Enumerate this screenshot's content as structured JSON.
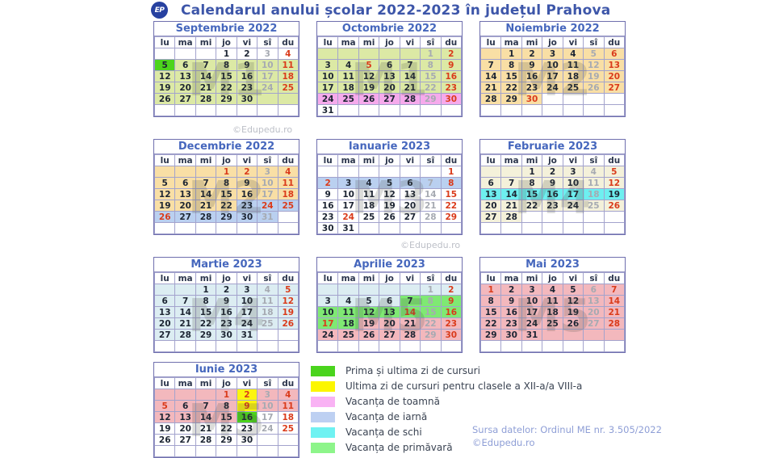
{
  "title": "Calendarul anului școlar 2022-2023 în județul Prahova",
  "logo_text": "EP",
  "copyright_watermark": "©Edupedu.ro",
  "day_headers": [
    "lu",
    "ma",
    "mi",
    "jo",
    "vi",
    "sî",
    "du"
  ],
  "palette": {
    "g1": "#dce9a5",
    "gs": "#4cd41c",
    "au": "#f6aaec",
    "pe": "#f9dfa5",
    "wi": "#bad0f0",
    "cr": "#f4f1da",
    "sk": "#6eeff0",
    "pb": "#dcedf2",
    "sp": "#7fe973",
    "pk": "#f3b8bd",
    "ye": "#fdf410"
  },
  "text_colors": {
    "d": "#1d2533",
    "x": "#a6aab2",
    "r": "#da3b1b"
  },
  "months": [
    {
      "name": "Septembrie 2022",
      "watermark": "M1",
      "weeks": [
        [
          "::",
          "::",
          "::",
          "1:d:",
          "2:d:",
          "3:x:",
          "4:r:"
        ],
        [
          "5:d:gs",
          "6:d:g1",
          "7:d:g1",
          "8:d:g1",
          "9:d:g1",
          "10:x:g1",
          "11:r:g1"
        ],
        [
          "12:d:g1",
          "13:d:g1",
          "14:d:g1",
          "15:d:g1",
          "16:d:g1",
          "17:x:g1",
          "18:r:g1"
        ],
        [
          "19:d:g1",
          "20:d:g1",
          "21:d:g1",
          "22:d:g1",
          "23:d:g1",
          "24:x:g1",
          "25:r:g1"
        ],
        [
          "26:d:g1",
          "27:d:g1",
          "28:d:g1",
          "29:d:g1",
          "30:d:g1",
          "::g1",
          "::g1"
        ],
        [
          "::",
          "::",
          "::",
          "::",
          "::",
          "::",
          "::"
        ]
      ]
    },
    {
      "name": "Octombrie 2022",
      "watermark": "M1",
      "weeks": [
        [
          "::g1",
          "::g1",
          "::g1",
          "::g1",
          "::g1",
          "1:x:g1",
          "2:r:g1"
        ],
        [
          "3:d:g1",
          "4:d:g1",
          "5:r:g1",
          "6:d:g1",
          "7:d:g1",
          "8:x:g1",
          "9:r:g1"
        ],
        [
          "10:d:g1",
          "11:d:g1",
          "12:d:g1",
          "13:d:g1",
          "14:d:g1",
          "15:x:g1",
          "16:r:g1"
        ],
        [
          "17:d:g1",
          "18:d:g1",
          "19:d:g1",
          "20:d:g1",
          "21:d:g1",
          "22:x:g1",
          "23:r:g1"
        ],
        [
          "24:d:au",
          "25:d:au",
          "26:d:au",
          "27:d:au",
          "28:d:au",
          "29:x:au",
          "30:r:au"
        ],
        [
          "31:d:",
          "::",
          "::",
          "::",
          "::",
          "::",
          "::"
        ]
      ]
    },
    {
      "name": "Noiembrie 2022",
      "watermark": "M2",
      "weeks": [
        [
          "::pe",
          "1:d:pe",
          "2:d:pe",
          "3:d:pe",
          "4:d:pe",
          "5:x:pe",
          "6:r:pe"
        ],
        [
          "7:d:pe",
          "8:d:pe",
          "9:d:pe",
          "10:d:pe",
          "11:d:pe",
          "12:x:pe",
          "13:r:pe"
        ],
        [
          "14:d:pe",
          "15:d:pe",
          "16:d:pe",
          "17:d:pe",
          "18:d:pe",
          "19:x:pe",
          "20:r:pe"
        ],
        [
          "21:d:pe",
          "22:d:pe",
          "23:d:pe",
          "24:d:pe",
          "25:d:pe",
          "26:x:pe",
          "27:r:pe"
        ],
        [
          "28:d:pe",
          "29:d:pe",
          "30:r:pe",
          "::",
          "::",
          "::",
          "::"
        ],
        [
          "::",
          "::",
          "::",
          "::",
          "::",
          "::",
          "::"
        ]
      ]
    },
    {
      "name": "Decembrie 2022",
      "watermark": "M2",
      "weeks": [
        [
          "::pe",
          "::pe",
          "::pe",
          "1:r:pe",
          "2:r:pe",
          "3:x:pe",
          "4:r:pe"
        ],
        [
          "5:d:pe",
          "6:d:pe",
          "7:d:pe",
          "8:d:pe",
          "9:d:pe",
          "10:x:pe",
          "11:r:pe"
        ],
        [
          "12:d:pe",
          "13:d:pe",
          "14:d:pe",
          "15:d:pe",
          "16:d:pe",
          "17:x:pe",
          "18:r:pe"
        ],
        [
          "19:d:pe",
          "20:d:pe",
          "21:d:pe",
          "22:d:pe",
          "23:d:wi",
          "24:r:wi",
          "25:r:wi"
        ],
        [
          "26:r:wi",
          "27:d:wi",
          "28:d:wi",
          "29:d:wi",
          "30:d:wi",
          "31:x:wi",
          "::"
        ],
        [
          "::",
          "::",
          "::",
          "::",
          "::",
          "::",
          "::"
        ]
      ]
    },
    {
      "name": "Ianuarie 2023",
      "watermark": "M3",
      "weeks": [
        [
          "::",
          "::",
          "::",
          "::",
          "::",
          "::",
          "1:r:"
        ],
        [
          "2:r:wi",
          "3:d:wi",
          "4:d:wi",
          "5:d:wi",
          "6:d:wi",
          "7:x:wi",
          "8:r:wi"
        ],
        [
          "9:d:",
          "10:d:",
          "11:d:",
          "12:d:",
          "13:d:",
          "14:x:",
          "15:r:"
        ],
        [
          "16:d:",
          "17:d:",
          "18:d:",
          "19:d:",
          "20:d:",
          "21:x:",
          "22:r:"
        ],
        [
          "23:d:",
          "24:r:",
          "25:d:",
          "26:d:",
          "27:d:",
          "28:x:",
          "29:r:"
        ],
        [
          "30:d:",
          "31:d:",
          "::",
          "::",
          "::",
          "::",
          "::"
        ]
      ]
    },
    {
      "name": "Februarie 2023",
      "watermark": "M4",
      "weeks": [
        [
          "::cr",
          "::cr",
          "1:d:cr",
          "2:d:cr",
          "3:d:cr",
          "4:x:cr",
          "5:r:cr"
        ],
        [
          "6:d:cr",
          "7:d:cr",
          "8:d:cr",
          "9:d:cr",
          "10:d:cr",
          "11:x:cr",
          "12:r:cr"
        ],
        [
          "13:d:sk",
          "14:d:sk",
          "15:d:sk",
          "16:d:sk",
          "17:d:sk",
          "18:x:sk",
          "19:d:sk"
        ],
        [
          "20:d:cr",
          "21:d:cr",
          "22:d:cr",
          "23:d:cr",
          "24:d:cr",
          "25:x:cr",
          "26:r:cr"
        ],
        [
          "27:d:cr",
          "28:d:cr",
          "::",
          "::",
          "::",
          "::",
          "::"
        ],
        [
          "::",
          "::",
          "::",
          "::",
          "::",
          "::",
          "::"
        ]
      ]
    },
    {
      "name": "Martie 2023",
      "watermark": "M4",
      "weeks": [
        [
          "::pb",
          "::pb",
          "1:d:pb",
          "2:d:pb",
          "3:d:pb",
          "4:x:pb",
          "5:r:pb"
        ],
        [
          "6:d:pb",
          "7:d:pb",
          "8:d:pb",
          "9:d:pb",
          "10:d:pb",
          "11:x:pb",
          "12:r:pb"
        ],
        [
          "13:d:pb",
          "14:d:pb",
          "15:d:pb",
          "16:d:pb",
          "17:d:pb",
          "18:x:pb",
          "19:r:pb"
        ],
        [
          "20:d:pb",
          "21:d:pb",
          "22:d:pb",
          "23:d:pb",
          "24:d:pb",
          "25:x:pb",
          "26:r:pb"
        ],
        [
          "27:d:pb",
          "28:d:pb",
          "29:d:pb",
          "30:d:pb",
          "31:d:pb",
          "::",
          "::"
        ],
        [
          "::",
          "::",
          "::",
          "::",
          "::",
          "::",
          "::"
        ]
      ]
    },
    {
      "name": "Aprilie 2023",
      "watermark": "M5",
      "weeks": [
        [
          "::pb",
          "::pb",
          "::pb",
          "::pb",
          "::pb",
          "1:x:pb",
          "2:r:pb"
        ],
        [
          "3:d:pb",
          "4:d:pb",
          "5:d:pb",
          "6:d:pb",
          "7:d:sp",
          "8:x:sp",
          "9:r:sp"
        ],
        [
          "10:d:sp",
          "11:d:sp",
          "12:d:sp",
          "13:d:sp",
          "14:r:sp",
          "15:x:sp",
          "16:r:sp"
        ],
        [
          "17:r:sp",
          "18:d:sp",
          "19:d:pk",
          "20:d:pk",
          "21:d:pk",
          "22:x:pk",
          "23:r:pk"
        ],
        [
          "24:d:pk",
          "25:d:pk",
          "26:d:pk",
          "27:d:pk",
          "28:d:pk",
          "29:x:pk",
          "30:r:pk"
        ],
        [
          "::",
          "::",
          "::",
          "::",
          "::",
          "::",
          "::"
        ]
      ]
    },
    {
      "name": "Mai 2023",
      "watermark": "M5",
      "weeks": [
        [
          "1:r:pk",
          "2:d:pk",
          "3:d:pk",
          "4:d:pk",
          "5:d:pk",
          "6:x:pk",
          "7:r:pk"
        ],
        [
          "8:d:pk",
          "9:d:pk",
          "10:d:pk",
          "11:d:pk",
          "12:d:pk",
          "13:x:pk",
          "14:r:pk"
        ],
        [
          "15:d:pk",
          "16:d:pk",
          "17:d:pk",
          "18:d:pk",
          "19:d:pk",
          "20:x:pk",
          "21:r:pk"
        ],
        [
          "22:d:pk",
          "23:d:pk",
          "24:d:pk",
          "25:d:pk",
          "26:d:pk",
          "27:x:pk",
          "28:r:pk"
        ],
        [
          "29:d:pk",
          "30:d:pk",
          "31:d:pk",
          "::pk",
          "::pk",
          "::pk",
          "::pk"
        ],
        [
          "::",
          "::",
          "::",
          "::",
          "::",
          "::",
          "::"
        ]
      ]
    },
    {
      "name": "Iunie 2023",
      "watermark": "M5",
      "weeks": [
        [
          "::pk",
          "::pk",
          "::pk",
          "1:r:pk",
          "2:r:ye",
          "3:x:pk",
          "4:r:pk"
        ],
        [
          "5:r:pk",
          "6:d:pk",
          "7:d:pk",
          "8:d:pk",
          "9:r:ye",
          "10:x:pk",
          "11:r:pk"
        ],
        [
          "12:d:pk",
          "13:d:pk",
          "14:d:pk",
          "15:d:pk",
          "16:d:gs",
          "17:x:",
          "18:r:"
        ],
        [
          "19:d:",
          "20:d:",
          "21:d:",
          "22:d:",
          "23:d:",
          "24:x:",
          "25:r:"
        ],
        [
          "26:d:",
          "27:d:",
          "28:d:",
          "29:d:",
          "30:d:",
          "::",
          "::"
        ],
        [
          "::",
          "::",
          "::",
          "::",
          "::",
          "::",
          "::"
        ]
      ]
    }
  ],
  "legend": [
    {
      "color": "#4ad41d",
      "label": "Prima și ultima zi de cursuri"
    },
    {
      "color": "#fcf600",
      "label": "Ultima zi de cursuri pentru clasele a XII-a/a VIII-a"
    },
    {
      "color": "#f9b2f4",
      "label": "Vacanța de toamnă"
    },
    {
      "color": "#bdd0f2",
      "label": "Vacanța de iarnă"
    },
    {
      "color": "#6ff2f2",
      "label": "Vacanța de schi"
    },
    {
      "color": "#8df58a",
      "label": "Vacanța de primăvară"
    }
  ],
  "source_note": {
    "line1": "Sursa datelor: Ordinul ME nr. 3.505/2022",
    "line2": "©Edupedu.ro"
  }
}
